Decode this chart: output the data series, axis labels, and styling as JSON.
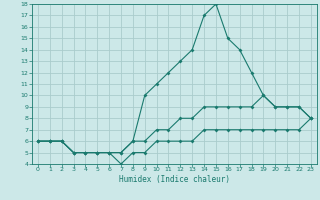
{
  "title": "",
  "xlabel": "Humidex (Indice chaleur)",
  "bg_color": "#cce8e8",
  "grid_color": "#aacccc",
  "line_color": "#1a7a6e",
  "xlim": [
    -0.5,
    23.5
  ],
  "ylim": [
    4,
    18
  ],
  "xticks": [
    0,
    1,
    2,
    3,
    4,
    5,
    6,
    7,
    8,
    9,
    10,
    11,
    12,
    13,
    14,
    15,
    16,
    17,
    18,
    19,
    20,
    21,
    22,
    23
  ],
  "yticks": [
    4,
    5,
    6,
    7,
    8,
    9,
    10,
    11,
    12,
    13,
    14,
    15,
    16,
    17,
    18
  ],
  "series": [
    {
      "x": [
        0,
        1,
        2,
        3,
        4,
        5,
        6,
        7,
        8,
        9,
        10,
        11,
        12,
        13,
        14,
        15,
        16,
        17,
        18,
        19,
        20,
        21,
        22,
        23
      ],
      "y": [
        6,
        6,
        6,
        5,
        5,
        5,
        5,
        5,
        6,
        10,
        11,
        12,
        13,
        14,
        17,
        18,
        15,
        14,
        12,
        10,
        9,
        9,
        9,
        8
      ]
    },
    {
      "x": [
        0,
        1,
        2,
        3,
        4,
        5,
        6,
        7,
        8,
        9,
        10,
        11,
        12,
        13,
        14,
        15,
        16,
        17,
        18,
        19,
        20,
        21,
        22,
        23
      ],
      "y": [
        6,
        6,
        6,
        5,
        5,
        5,
        5,
        5,
        6,
        6,
        7,
        7,
        8,
        8,
        9,
        9,
        9,
        9,
        9,
        10,
        9,
        9,
        9,
        8
      ]
    },
    {
      "x": [
        0,
        1,
        2,
        3,
        4,
        5,
        6,
        7,
        8,
        9,
        10,
        11,
        12,
        13,
        14,
        15,
        16,
        17,
        18,
        19,
        20,
        21,
        22,
        23
      ],
      "y": [
        6,
        6,
        6,
        5,
        5,
        5,
        5,
        4,
        5,
        5,
        6,
        6,
        6,
        6,
        7,
        7,
        7,
        7,
        7,
        7,
        7,
        7,
        7,
        8
      ]
    }
  ]
}
